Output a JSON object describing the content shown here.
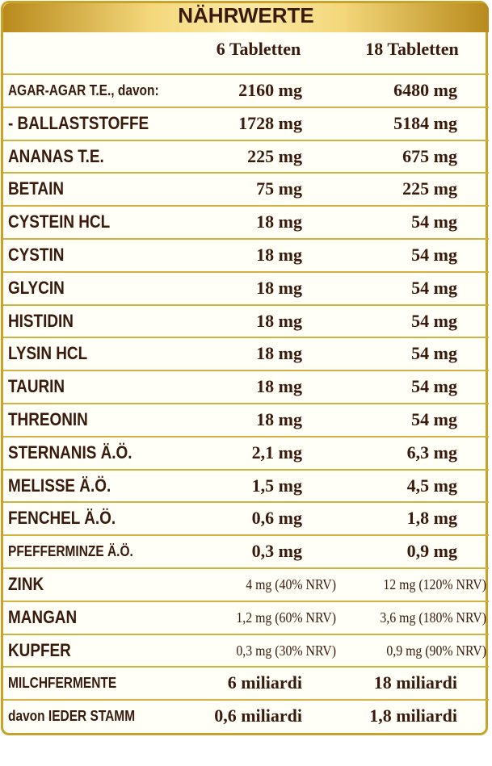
{
  "header": {
    "title": "NÄHRWERTE"
  },
  "table": {
    "columns": [
      "6 Tabletten",
      "18 Tabletten"
    ],
    "rows": [
      [
        "AGAR-AGAR T.E., davon:",
        "2160 mg",
        "6480 mg"
      ],
      [
        " - BALLASTSTOFFE",
        "1728 mg",
        "5184 mg"
      ],
      [
        "ANANAS T.E.",
        "225 mg",
        "675 mg"
      ],
      [
        "BETAIN",
        "75 mg",
        "225 mg"
      ],
      [
        "CYSTEIN HCL",
        "18 mg",
        "54 mg"
      ],
      [
        "CYSTIN",
        "18 mg",
        "54 mg"
      ],
      [
        "GLYCIN",
        "18 mg",
        "54 mg"
      ],
      [
        "HISTIDIN",
        "18 mg",
        "54 mg"
      ],
      [
        "LYSIN HCL",
        "18 mg",
        "54 mg"
      ],
      [
        "TAURIN",
        "18 mg",
        "54 mg"
      ],
      [
        "THREONIN",
        "18 mg",
        "54 mg"
      ],
      [
        "STERNANIS Ä.Ö.",
        "2,1 mg",
        "6,3 mg"
      ],
      [
        "MELISSE Ä.Ö.",
        "1,5 mg",
        "4,5 mg"
      ],
      [
        "FENCHEL Ä.Ö.",
        "0,6 mg",
        "1,8 mg"
      ],
      [
        "PFEFFERMINZE Ä.Ö.",
        "0,3 mg",
        "0,9 mg"
      ],
      [
        "ZINK",
        "4 mg (40% NRV)",
        "12 mg (120% NRV)"
      ],
      [
        "MANGAN",
        "1,2 mg (60% NRV)",
        "3,6 mg (180% NRV)"
      ],
      [
        "KUPFER",
        "0,3 mg (30% NRV)",
        "0,9 mg (90% NRV)"
      ],
      [
        "MILCHFERMENTE",
        "6 miliardi",
        "18 miliardi"
      ],
      [
        "davon IEDER STAMM",
        "0,6 miliardi",
        "1,8 miliardi"
      ]
    ]
  }
}
